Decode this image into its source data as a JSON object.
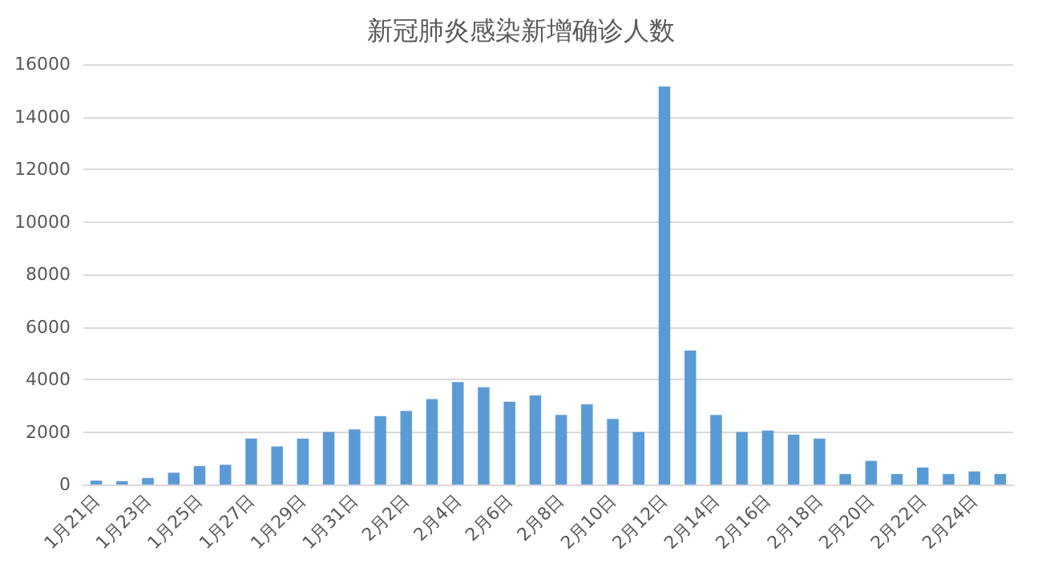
{
  "chart_data": {
    "type": "bar",
    "title": "新冠肺炎感染新增确诊人数",
    "categories": [
      "1月21日",
      null,
      "1月23日",
      null,
      "1月25日",
      null,
      "1月27日",
      null,
      "1月29日",
      null,
      "1月31日",
      null,
      "2月2日",
      null,
      "2月4日",
      null,
      "2月6日",
      null,
      "2月8日",
      null,
      "2月10日",
      null,
      "2月12日",
      null,
      "2月14日",
      null,
      "2月16日",
      null,
      "2月18日",
      null,
      "2月20日",
      null,
      "2月22日",
      null,
      "2月24日",
      null
    ],
    "values": [
      150,
      130,
      250,
      450,
      700,
      750,
      1750,
      1450,
      1750,
      2000,
      2100,
      2600,
      2800,
      3250,
      3900,
      3700,
      3150,
      3400,
      2650,
      3050,
      2500,
      2000,
      15150,
      5100,
      2650,
      2000,
      2050,
      1900,
      1750,
      400,
      900,
      400,
      650,
      400,
      500,
      400
    ],
    "color": "#5b9bd5",
    "ylim": [
      0,
      16000
    ],
    "yticks": [
      0,
      2000,
      4000,
      6000,
      8000,
      10000,
      12000,
      14000,
      16000
    ],
    "grid": "y"
  }
}
